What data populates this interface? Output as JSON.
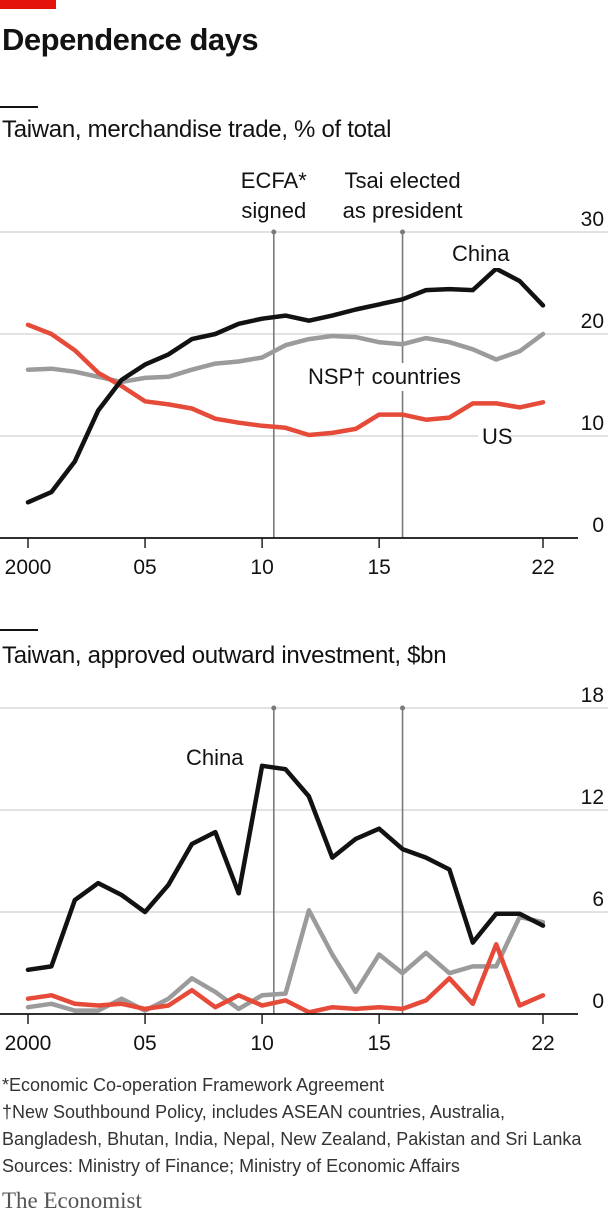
{
  "title": "Dependence days",
  "brand": "The Economist",
  "footnotes": [
    "*Economic Co-operation Framework Agreement",
    "†New Southbound Policy, includes ASEAN countries, Australia,",
    "Bangladesh, Bhutan, India, Nepal, New Zealand, Pakistan and Sri Lanka",
    "Sources: Ministry of Finance; Ministry of Economic Affairs"
  ],
  "colors": {
    "china": "#121212",
    "nsp": "#9b9b9b",
    "us": "#e64b3a",
    "accent": "#e3120b",
    "grid": "#d0d0d0",
    "event": "#7a7a7a"
  },
  "chart_data": [
    {
      "type": "line",
      "title": "Taiwan, merchandise trade, % of total",
      "x_ticks": [
        "2000",
        "05",
        "10",
        "15",
        "22"
      ],
      "x_tick_values": [
        2000,
        2005,
        2010,
        2015,
        2022
      ],
      "xlim": [
        2000,
        2022
      ],
      "ylim": [
        0,
        30
      ],
      "y_ticks": [
        0,
        10,
        20,
        30
      ],
      "grid": true,
      "events": [
        {
          "x": 2010.5,
          "label_lines": [
            "ECFA*",
            "signed"
          ]
        },
        {
          "x": 2016.0,
          "label_lines": [
            "Tsai elected",
            "as president"
          ]
        }
      ],
      "x": [
        2000,
        2001,
        2002,
        2003,
        2004,
        2005,
        2006,
        2007,
        2008,
        2009,
        2010,
        2011,
        2012,
        2013,
        2014,
        2015,
        2016,
        2017,
        2018,
        2019,
        2020,
        2021,
        2022
      ],
      "series": [
        {
          "name": "China",
          "key": "china",
          "values": [
            3.5,
            4.5,
            7.5,
            12.5,
            15.5,
            17.0,
            18.0,
            19.5,
            20.0,
            21.0,
            21.5,
            21.8,
            21.3,
            21.8,
            22.4,
            22.9,
            23.4,
            24.3,
            24.4,
            24.3,
            26.4,
            25.2,
            22.8
          ]
        },
        {
          "name": "NSP† countries",
          "key": "nsp",
          "values": [
            16.5,
            16.6,
            16.3,
            15.8,
            15.3,
            15.7,
            15.8,
            16.5,
            17.1,
            17.3,
            17.7,
            18.9,
            19.5,
            19.8,
            19.7,
            19.2,
            19.0,
            19.6,
            19.2,
            18.5,
            17.5,
            18.3,
            20.0
          ]
        },
        {
          "name": "US",
          "key": "us",
          "values": [
            20.9,
            20.0,
            18.4,
            16.2,
            14.9,
            13.4,
            13.1,
            12.7,
            11.7,
            11.3,
            11.0,
            10.8,
            10.1,
            10.3,
            10.7,
            12.1,
            12.1,
            11.6,
            11.8,
            13.2,
            13.2,
            12.8,
            13.3
          ]
        }
      ]
    },
    {
      "type": "line",
      "title": "Taiwan, approved outward investment, $bn",
      "x_ticks": [
        "2000",
        "05",
        "10",
        "15",
        "22"
      ],
      "x_tick_values": [
        2000,
        2005,
        2010,
        2015,
        2022
      ],
      "xlim": [
        2000,
        2022
      ],
      "ylim": [
        0,
        18
      ],
      "y_ticks": [
        0,
        6,
        12,
        18
      ],
      "grid": true,
      "events": [
        {
          "x": 2010.5,
          "label_lines": []
        },
        {
          "x": 2016.0,
          "label_lines": []
        }
      ],
      "x": [
        2000,
        2001,
        2002,
        2003,
        2004,
        2005,
        2006,
        2007,
        2008,
        2009,
        2010,
        2011,
        2012,
        2013,
        2014,
        2015,
        2016,
        2017,
        2018,
        2019,
        2020,
        2021,
        2022
      ],
      "series": [
        {
          "name": "China",
          "key": "china",
          "values": [
            2.6,
            2.8,
            6.7,
            7.7,
            7.0,
            6.0,
            7.6,
            10.0,
            10.7,
            7.1,
            14.6,
            14.4,
            12.8,
            9.2,
            10.3,
            10.9,
            9.7,
            9.2,
            8.5,
            4.2,
            5.9,
            5.9,
            5.2
          ]
        },
        {
          "name": "NSP",
          "key": "nsp",
          "values": [
            0.4,
            0.6,
            0.2,
            0.2,
            0.9,
            0.2,
            0.9,
            2.1,
            1.3,
            0.3,
            1.1,
            1.2,
            6.1,
            3.5,
            1.3,
            3.5,
            2.4,
            3.6,
            2.4,
            2.8,
            2.8,
            5.7,
            5.4
          ]
        },
        {
          "name": "US",
          "key": "us",
          "values": [
            0.9,
            1.1,
            0.6,
            0.5,
            0.6,
            0.3,
            0.5,
            1.4,
            0.4,
            1.1,
            0.5,
            0.8,
            0.1,
            0.4,
            0.3,
            0.4,
            0.3,
            0.8,
            2.1,
            0.6,
            4.1,
            0.5,
            1.1
          ]
        }
      ]
    }
  ]
}
